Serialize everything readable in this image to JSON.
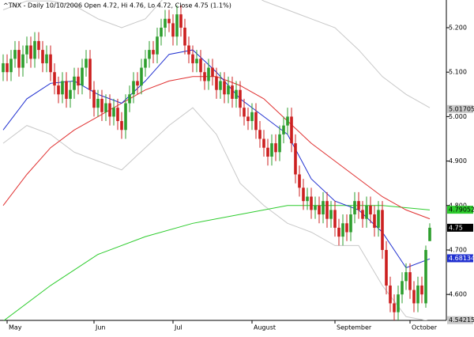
{
  "chart_data": {
    "type": "candlestick",
    "title": "^TNX - Daily 10/10/2006 Open 4.72, Hi 4.76, Lo 4.72, Close 4.75 (1.1%)",
    "up_color": "#2e9e2e",
    "down_color": "#cc2020",
    "open": [
      5.1,
      5.12,
      5.1,
      5.13,
      5.15,
      5.11,
      5.14,
      5.16,
      5.13,
      5.17,
      5.15,
      5.12,
      5.14,
      5.1,
      5.07,
      5.05,
      5.08,
      5.04,
      5.06,
      5.09,
      5.07,
      5.11,
      5.13,
      5.06,
      5.02,
      5.04,
      5.01,
      5.03,
      5.0,
      5.02,
      4.99,
      4.97,
      5.03,
      5.05,
      5.08,
      5.07,
      5.11,
      5.13,
      5.15,
      5.14,
      5.18,
      5.2,
      5.22,
      5.21,
      5.18,
      5.23,
      5.2,
      5.16,
      5.14,
      5.12,
      5.13,
      5.1,
      5.08,
      5.11,
      5.09,
      5.06,
      5.08,
      5.05,
      5.07,
      5.04,
      5.06,
      5.02,
      5.0,
      4.99,
      5.01,
      4.97,
      4.95,
      4.93,
      4.91,
      4.94,
      4.92,
      4.96,
      4.98,
      5.0,
      4.94,
      4.87,
      4.84,
      4.81,
      4.82,
      4.79,
      4.8,
      4.78,
      4.81,
      4.77,
      4.79,
      4.75,
      4.73,
      4.76,
      4.74,
      4.78,
      4.81,
      4.79,
      4.77,
      4.8,
      4.78,
      4.75,
      4.79,
      4.7,
      4.62,
      4.58,
      4.56,
      4.6,
      4.63,
      4.65,
      4.61,
      4.58,
      4.62,
      4.58,
      4.72
    ],
    "high": [
      5.14,
      5.14,
      5.15,
      5.17,
      5.17,
      5.16,
      5.18,
      5.18,
      5.19,
      5.19,
      5.17,
      5.16,
      5.16,
      5.12,
      5.09,
      5.1,
      5.1,
      5.08,
      5.11,
      5.11,
      5.13,
      5.15,
      5.15,
      5.08,
      5.06,
      5.06,
      5.05,
      5.05,
      5.04,
      5.04,
      5.01,
      5.05,
      5.07,
      5.1,
      5.1,
      5.13,
      5.15,
      5.17,
      5.17,
      5.2,
      5.22,
      5.24,
      5.24,
      5.23,
      5.25,
      5.25,
      5.22,
      5.18,
      5.16,
      5.15,
      5.15,
      5.12,
      5.13,
      5.13,
      5.11,
      5.1,
      5.1,
      5.09,
      5.09,
      5.08,
      5.08,
      5.04,
      5.02,
      5.03,
      5.03,
      4.99,
      4.97,
      4.95,
      4.96,
      4.96,
      4.98,
      5.0,
      5.02,
      5.02,
      4.96,
      4.89,
      4.86,
      4.84,
      4.84,
      4.82,
      4.82,
      4.83,
      4.83,
      4.81,
      4.81,
      4.77,
      4.78,
      4.78,
      4.8,
      4.83,
      4.83,
      4.81,
      4.82,
      4.82,
      4.8,
      4.81,
      4.81,
      4.72,
      4.64,
      4.6,
      4.62,
      4.65,
      4.67,
      4.67,
      4.63,
      4.64,
      4.64,
      4.71,
      4.76
    ],
    "low": [
      5.08,
      5.08,
      5.08,
      5.11,
      5.09,
      5.09,
      5.12,
      5.11,
      5.11,
      5.13,
      5.1,
      5.1,
      5.08,
      5.05,
      5.03,
      5.03,
      5.02,
      5.02,
      5.04,
      5.05,
      5.05,
      5.09,
      5.04,
      5.0,
      5.0,
      4.99,
      4.99,
      4.98,
      4.98,
      4.97,
      4.95,
      4.95,
      5.01,
      5.03,
      5.05,
      5.05,
      5.09,
      5.11,
      5.12,
      5.12,
      5.16,
      5.18,
      5.19,
      5.16,
      5.16,
      5.18,
      5.14,
      5.12,
      5.1,
      5.1,
      5.08,
      5.06,
      5.06,
      5.07,
      5.04,
      5.04,
      5.03,
      5.03,
      5.02,
      5.02,
      5.0,
      4.98,
      4.97,
      4.97,
      4.95,
      4.93,
      4.91,
      4.89,
      4.89,
      4.9,
      4.9,
      4.94,
      4.96,
      4.92,
      4.85,
      4.82,
      4.79,
      4.79,
      4.77,
      4.77,
      4.76,
      4.76,
      4.75,
      4.75,
      4.73,
      4.71,
      4.71,
      4.72,
      4.72,
      4.76,
      4.77,
      4.75,
      4.75,
      4.76,
      4.73,
      4.73,
      4.68,
      4.6,
      4.56,
      4.54,
      4.54,
      4.58,
      4.61,
      4.59,
      4.56,
      4.56,
      4.58,
      4.57,
      4.72
    ],
    "close": [
      5.12,
      5.1,
      5.13,
      5.15,
      5.11,
      5.14,
      5.16,
      5.13,
      5.17,
      5.15,
      5.12,
      5.14,
      5.1,
      5.07,
      5.05,
      5.08,
      5.04,
      5.06,
      5.09,
      5.07,
      5.11,
      5.13,
      5.06,
      5.02,
      5.04,
      5.01,
      5.03,
      5.0,
      5.02,
      4.99,
      4.97,
      5.03,
      5.05,
      5.08,
      5.07,
      5.11,
      5.13,
      5.15,
      5.14,
      5.18,
      5.2,
      5.22,
      5.21,
      5.18,
      5.23,
      5.2,
      5.16,
      5.14,
      5.12,
      5.13,
      5.1,
      5.08,
      5.11,
      5.09,
      5.06,
      5.08,
      5.05,
      5.07,
      5.04,
      5.06,
      5.02,
      5.0,
      4.99,
      5.01,
      4.97,
      4.95,
      4.93,
      4.91,
      4.94,
      4.92,
      4.96,
      4.98,
      5.0,
      4.94,
      4.87,
      4.84,
      4.81,
      4.82,
      4.79,
      4.8,
      4.78,
      4.81,
      4.77,
      4.79,
      4.75,
      4.73,
      4.76,
      4.74,
      4.78,
      4.81,
      4.79,
      4.77,
      4.8,
      4.78,
      4.75,
      4.79,
      4.7,
      4.62,
      4.58,
      4.56,
      4.6,
      4.63,
      4.65,
      4.61,
      4.58,
      4.62,
      4.6,
      4.7,
      4.75
    ],
    "overlays": [
      {
        "color": "#c8c8c8",
        "x": [
          0,
          6,
          12,
          18,
          24,
          30,
          36,
          42,
          48,
          54,
          60,
          66,
          72,
          78,
          84,
          90,
          96,
          102,
          108
        ],
        "values": [
          5.24,
          5.26,
          5.26,
          5.25,
          5.22,
          5.2,
          5.22,
          5.28,
          5.3,
          5.3,
          5.29,
          5.26,
          5.24,
          5.22,
          5.2,
          5.15,
          5.09,
          5.05,
          5.02
        ]
      },
      {
        "color": "#c8c8c8",
        "x": [
          0,
          6,
          12,
          18,
          24,
          30,
          36,
          42,
          48,
          54,
          60,
          66,
          72,
          78,
          84,
          90,
          96,
          102,
          108
        ],
        "values": [
          4.94,
          4.98,
          4.96,
          4.92,
          4.9,
          4.88,
          4.93,
          4.98,
          5.02,
          4.96,
          4.85,
          4.8,
          4.76,
          4.74,
          4.71,
          4.71,
          4.62,
          4.55,
          4.54
        ]
      },
      {
        "color": "#2ecc2e",
        "x": [
          0,
          12,
          24,
          36,
          48,
          60,
          72,
          84,
          96,
          108
        ],
        "values": [
          4.54,
          4.62,
          4.69,
          4.73,
          4.76,
          4.78,
          4.8,
          4.8,
          4.8,
          4.79
        ]
      },
      {
        "color": "#e03030",
        "x": [
          0,
          6,
          12,
          18,
          24,
          30,
          36,
          42,
          48,
          54,
          60,
          66,
          72,
          78,
          84,
          90,
          96,
          102,
          108
        ],
        "values": [
          4.8,
          4.87,
          4.93,
          4.97,
          5.0,
          5.03,
          5.06,
          5.08,
          5.09,
          5.09,
          5.07,
          5.04,
          4.99,
          4.94,
          4.9,
          4.86,
          4.82,
          4.79,
          4.77
        ]
      },
      {
        "color": "#2030d0",
        "x": [
          0,
          6,
          12,
          18,
          24,
          30,
          36,
          42,
          48,
          54,
          60,
          66,
          72,
          78,
          84,
          90,
          96,
          102,
          108
        ],
        "values": [
          4.97,
          5.04,
          5.075,
          5.08,
          5.05,
          5.03,
          5.08,
          5.14,
          5.15,
          5.1,
          5.04,
          5.0,
          4.96,
          4.86,
          4.81,
          4.79,
          4.74,
          4.66,
          4.68
        ]
      }
    ],
    "last_values": [
      {
        "value": 5.01705,
        "color": "#c8c8c8",
        "text_color": "#000000"
      },
      {
        "value": 4.79052,
        "color": "#2ecc2e",
        "text_color": "#000000"
      },
      {
        "value": 4.75,
        "color": "#000000",
        "text_color": "#ffffff"
      },
      {
        "value": 4.68134,
        "color": "#2030d0",
        "text_color": "#ffffff"
      },
      {
        "value": 4.54215,
        "color": "#c8c8c8",
        "text_color": "#000000"
      }
    ],
    "xlim": [
      -0.8,
      112.2
    ],
    "xticks": [
      {
        "value": 1,
        "label": "May"
      },
      {
        "value": 23,
        "label": "Jun"
      },
      {
        "value": 43,
        "label": "Jul"
      },
      {
        "value": 63,
        "label": "August"
      },
      {
        "value": 84,
        "label": "September"
      },
      {
        "value": 103,
        "label": "October"
      }
    ],
    "ylim": [
      4.5416,
      5.2623
    ],
    "yticks": [
      {
        "value": 5.2,
        "label": "5.200"
      },
      {
        "value": 5.1,
        "label": "5.100"
      },
      {
        "value": 5.0,
        "label": "5.000"
      },
      {
        "value": 4.9,
        "label": "4.900"
      },
      {
        "value": 4.8,
        "label": "4.800"
      },
      {
        "value": 4.7,
        "label": "4.700"
      },
      {
        "value": 4.6,
        "label": "4.600"
      }
    ]
  }
}
